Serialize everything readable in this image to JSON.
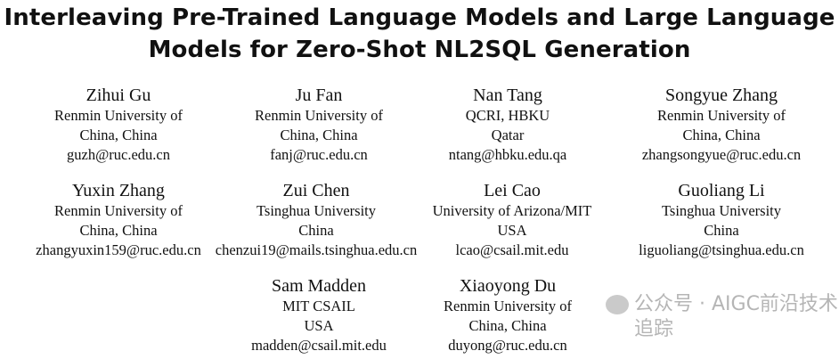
{
  "title": {
    "line1": "Interleaving Pre-Trained Language Models and Large Language",
    "line2": "Models for Zero-Shot NL2SQL Generation"
  },
  "authors": [
    {
      "name": "Zihui Gu",
      "affil1": "Renmin University of",
      "affil2": "China, China",
      "email": "guzh@ruc.edu.cn"
    },
    {
      "name": "Ju Fan",
      "affil1": "Renmin University of",
      "affil2": "China, China",
      "email": "fanj@ruc.edu.cn"
    },
    {
      "name": "Nan Tang",
      "affil1": "QCRI, HBKU",
      "affil2": "Qatar",
      "email": "ntang@hbku.edu.qa"
    },
    {
      "name": "Songyue Zhang",
      "affil1": "Renmin University of",
      "affil2": "China, China",
      "email": "zhangsongyue@ruc.edu.cn"
    },
    {
      "name": "Yuxin Zhang",
      "affil1": "Renmin University of",
      "affil2": "China, China",
      "email": "zhangyuxin159@ruc.edu.cn"
    },
    {
      "name": "Zui Chen",
      "affil1": "Tsinghua University",
      "affil2": "China",
      "email": "chenzui19@mails.tsinghua.edu.cn"
    },
    {
      "name": "Lei Cao",
      "affil1": "University of Arizona/MIT",
      "affil2": "USA",
      "email": "lcao@csail.mit.edu"
    },
    {
      "name": "Guoliang Li",
      "affil1": "Tsinghua University",
      "affil2": "China",
      "email": "liguoliang@tsinghua.edu.cn"
    },
    {
      "name": "Sam Madden",
      "affil1": "MIT CSAIL",
      "affil2": "USA",
      "email": "madden@csail.mit.edu"
    },
    {
      "name": "Xiaoyong Du",
      "affil1": "Renmin University of",
      "affil2": "China, China",
      "email": "duyong@ruc.edu.cn"
    }
  ],
  "watermark": {
    "text": "公众号 · AIGC前沿技术追踪",
    "icon": "wechat-icon"
  }
}
